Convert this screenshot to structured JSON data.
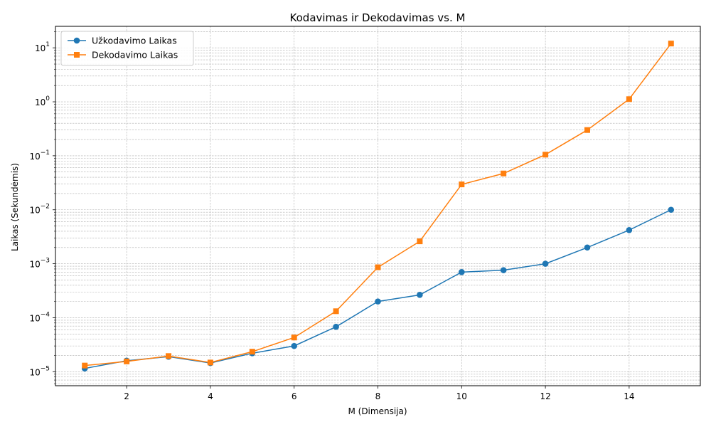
{
  "chart_data": {
    "type": "line",
    "title": "Kodavimas ir Dekodavimas vs. M",
    "xlabel": "M (Dimensija)",
    "ylabel": "Laikas (Sekundėmis)",
    "yscale": "log",
    "xlim": [
      0.3,
      15.7
    ],
    "ylim": [
      5.5e-06,
      25
    ],
    "x_ticks": [
      2,
      4,
      6,
      8,
      10,
      12,
      14
    ],
    "y_tick_exponents": [
      -5,
      -4,
      -3,
      -2,
      -1,
      0,
      1
    ],
    "grid": true,
    "legend_position": "top-left",
    "x": [
      1,
      2,
      3,
      4,
      5,
      6,
      7,
      8,
      9,
      10,
      11,
      12,
      13,
      14,
      15
    ],
    "series": [
      {
        "name": "Užkodavimo Laikas",
        "color": "#1f77b4",
        "marker": "circle",
        "values": [
          1.15e-05,
          1.6e-05,
          1.9e-05,
          1.45e-05,
          2.2e-05,
          3e-05,
          6.8e-05,
          0.0002,
          0.000265,
          0.0007,
          0.00076,
          0.001,
          0.002,
          0.0042,
          0.01
        ]
      },
      {
        "name": "Dekodavimo Laikas",
        "color": "#ff7f0e",
        "marker": "square",
        "values": [
          1.3e-05,
          1.55e-05,
          1.95e-05,
          1.48e-05,
          2.35e-05,
          4.3e-05,
          0.000132,
          0.00086,
          0.0026,
          0.0295,
          0.047,
          0.105,
          0.3,
          1.12,
          12.0
        ]
      }
    ]
  }
}
